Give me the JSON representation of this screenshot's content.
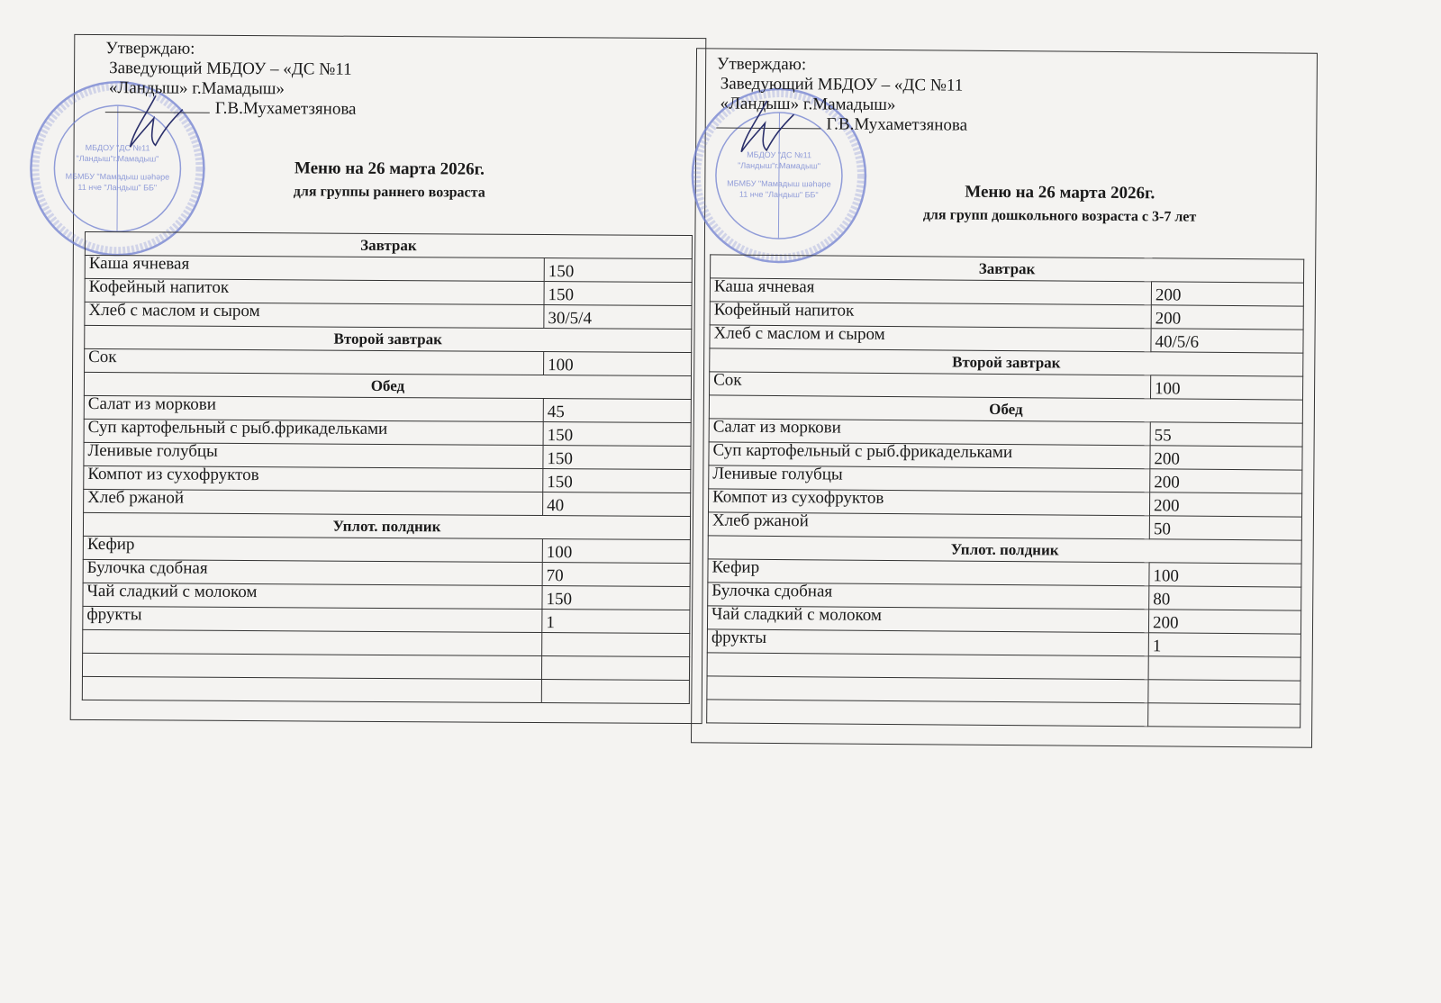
{
  "colors": {
    "stamp": "#6f7fd0",
    "ink": "#1a1a1a",
    "paper": "#f4f3f1"
  },
  "menus": [
    {
      "approve": [
        "Утверждаю:",
        "Заведующий МБДОУ – «ДС №11",
        "«Ландыш» г.Мамадыш»",
        "Г.В.Мухаметзянова"
      ],
      "title": "Меню на 26 марта 2026г.",
      "subtitle": "для группы раннего возраста",
      "stamp_text": [
        "МБДОУ \"ДС №11 \"Ландыш\" г.Мамадыш\"",
        "МБМБУ \"Мамадыш шәһәре 11 нче \"Ландыш\" ББ\""
      ],
      "sections": [
        {
          "title": "Завтрак",
          "items": [
            {
              "name": "Каша ячневая",
              "amount": "150"
            },
            {
              "name": "Кофейный напиток",
              "amount": "150"
            },
            {
              "name": "Хлеб с маслом и сыром",
              "amount": "30/5/4"
            }
          ]
        },
        {
          "title": "Второй завтрак",
          "items": [
            {
              "name": "Сок",
              "amount": "100"
            }
          ]
        },
        {
          "title": "Обед",
          "items": [
            {
              "name": "Салат из моркови",
              "amount": "45"
            },
            {
              "name": "Суп картофельный с рыб.фрикадельками",
              "amount": "150"
            },
            {
              "name": "Ленивые голубцы",
              "amount": "150"
            },
            {
              "name": "Компот из сухофруктов",
              "amount": "150"
            },
            {
              "name": "Хлеб ржаной",
              "amount": "40"
            }
          ]
        },
        {
          "title": "Уплот. полдник",
          "items": [
            {
              "name": "Кефир",
              "amount": "100"
            },
            {
              "name": "Булочка сдобная",
              "amount": "70"
            },
            {
              "name": "Чай сладкий с молоком",
              "amount": "150"
            },
            {
              "name": "фрукты",
              "amount": "1"
            },
            {
              "name": "",
              "amount": ""
            },
            {
              "name": "",
              "amount": ""
            },
            {
              "name": "",
              "amount": ""
            }
          ]
        }
      ]
    },
    {
      "approve": [
        "Утверждаю:",
        "Заведующий МБДОУ – «ДС №11",
        "«Ландыш» г.Мамадыш»",
        "Г.В.Мухаметзянова"
      ],
      "title": "Меню на 26 марта 2026г.",
      "subtitle": "для групп дошкольного возраста с 3-7 лет",
      "stamp_text": [
        "МБДОУ \"ДС №11 \"Ландыш\" г.Мамадыш\"",
        "МБМБУ \"Мамадыш шәһәре 11 нче \"Ландыш\" ББ\""
      ],
      "sections": [
        {
          "title": "Завтрак",
          "items": [
            {
              "name": "Каша ячневая",
              "amount": "200"
            },
            {
              "name": "Кофейный напиток",
              "amount": "200"
            },
            {
              "name": "Хлеб с маслом и сыром",
              "amount": "40/5/6"
            }
          ]
        },
        {
          "title": "Второй завтрак",
          "items": [
            {
              "name": "Сок",
              "amount": "100"
            }
          ]
        },
        {
          "title": "Обед",
          "items": [
            {
              "name": "Салат из моркови",
              "amount": "55"
            },
            {
              "name": "Суп картофельный с рыб.фрикадельками",
              "amount": "200"
            },
            {
              "name": "Ленивые голубцы",
              "amount": "200"
            },
            {
              "name": "Компот из сухофруктов",
              "amount": "200"
            },
            {
              "name": "Хлеб ржаной",
              "amount": "50"
            }
          ]
        },
        {
          "title": "Уплот. полдник",
          "items": [
            {
              "name": "Кефир",
              "amount": "100"
            },
            {
              "name": "Булочка сдобная",
              "amount": "80"
            },
            {
              "name": "Чай сладкий с молоком",
              "amount": "200"
            },
            {
              "name": "фрукты",
              "amount": "1"
            },
            {
              "name": "",
              "amount": ""
            },
            {
              "name": "",
              "amount": ""
            },
            {
              "name": "",
              "amount": ""
            }
          ]
        }
      ]
    }
  ]
}
